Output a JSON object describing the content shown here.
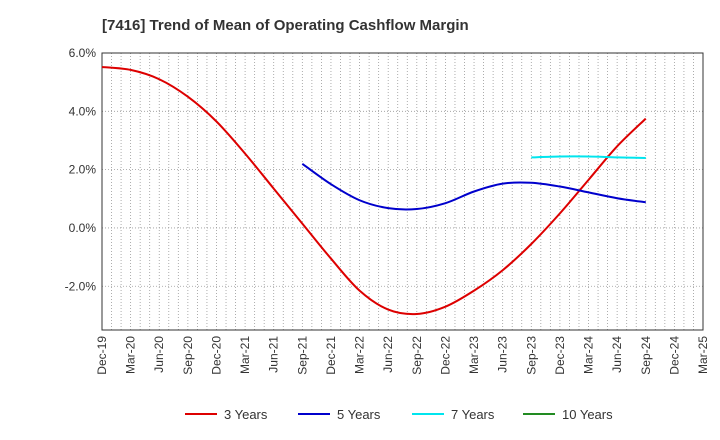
{
  "chart_data": {
    "type": "line",
    "title": "[7416]  Trend of Mean of Operating Cashflow Margin",
    "xlabel": "",
    "ylabel": "",
    "ylim": [
      -3.5,
      6.0
    ],
    "yticks": [
      6.0,
      4.0,
      2.0,
      0.0,
      -2.0
    ],
    "ytick_labels": [
      "6.0%",
      "4.0%",
      "2.0%",
      "0.0%",
      "-2.0%"
    ],
    "categories": [
      "Dec-19",
      "Mar-20",
      "Jun-20",
      "Sep-20",
      "Dec-20",
      "Mar-21",
      "Jun-21",
      "Sep-21",
      "Dec-21",
      "Mar-22",
      "Jun-22",
      "Sep-22",
      "Dec-22",
      "Mar-23",
      "Jun-23",
      "Sep-23",
      "Dec-23",
      "Mar-24",
      "Jun-24",
      "Sep-24",
      "Dec-24",
      "Mar-25"
    ],
    "grid": true,
    "legend_position": "bottom",
    "series": [
      {
        "name": "3 Years",
        "color": "#dd0000",
        "values": [
          5.52,
          5.42,
          5.1,
          4.5,
          3.65,
          2.55,
          1.35,
          0.15,
          -1.05,
          -2.15,
          -2.8,
          -2.95,
          -2.7,
          -2.15,
          -1.45,
          -0.55,
          0.5,
          1.65,
          2.8,
          3.75,
          null,
          null
        ]
      },
      {
        "name": "5 Years",
        "color": "#0000cc",
        "values": [
          null,
          null,
          null,
          null,
          null,
          null,
          null,
          2.2,
          1.5,
          0.95,
          0.68,
          0.65,
          0.85,
          1.25,
          1.52,
          1.55,
          1.42,
          1.22,
          1.02,
          0.88,
          null,
          null
        ]
      },
      {
        "name": "7 Years",
        "color": "#00e5ee",
        "values": [
          null,
          null,
          null,
          null,
          null,
          null,
          null,
          null,
          null,
          null,
          null,
          null,
          null,
          null,
          null,
          2.42,
          2.45,
          2.45,
          2.42,
          2.4,
          null,
          null
        ]
      },
      {
        "name": "10 Years",
        "color": "#228b22",
        "values": [
          null,
          null,
          null,
          null,
          null,
          null,
          null,
          null,
          null,
          null,
          null,
          null,
          null,
          null,
          null,
          null,
          null,
          null,
          null,
          null,
          null,
          null
        ]
      }
    ]
  }
}
